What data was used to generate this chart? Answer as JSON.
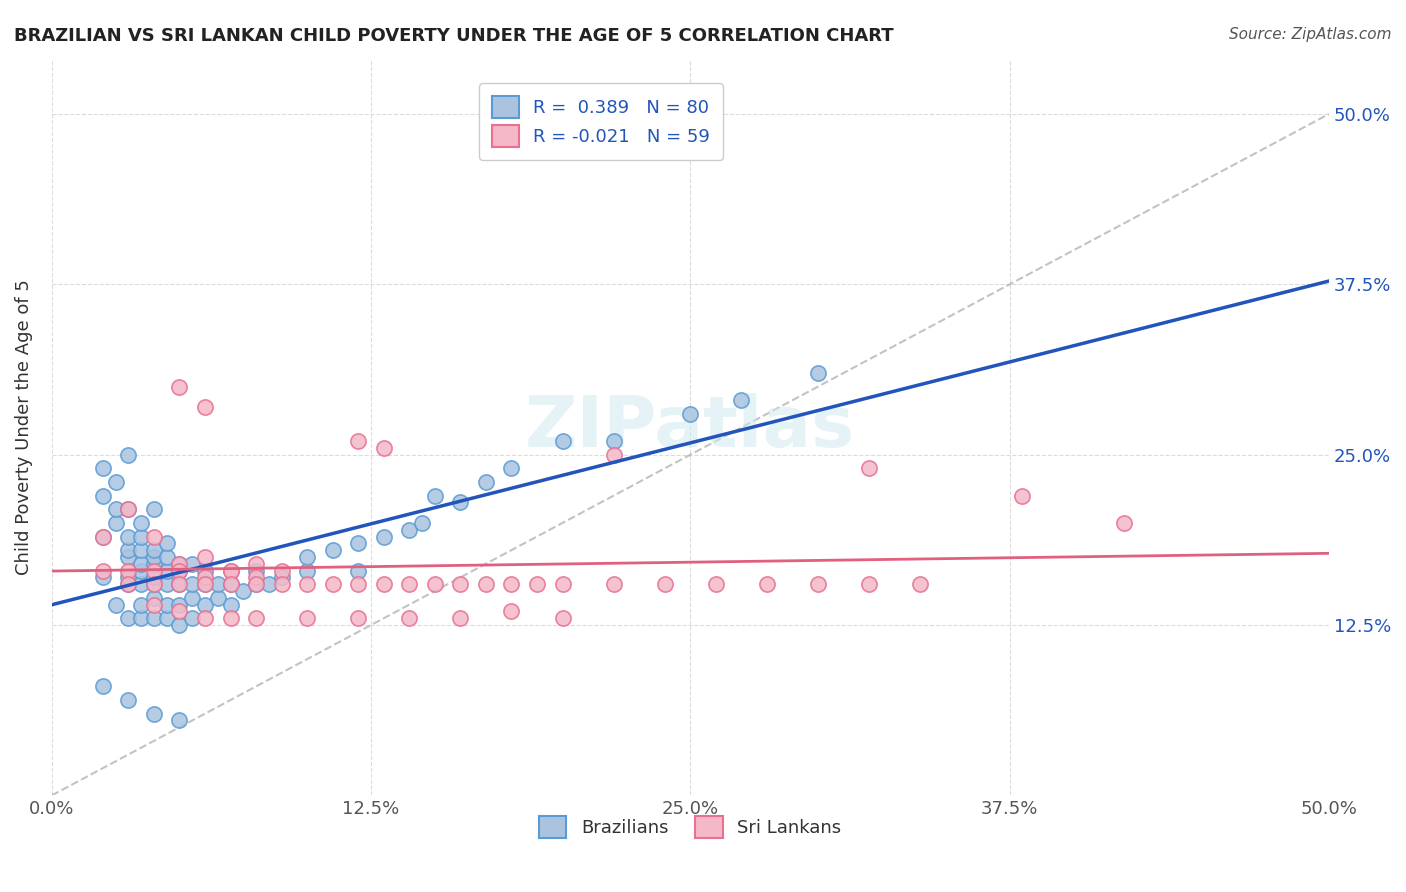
{
  "title": "BRAZILIAN VS SRI LANKAN CHILD POVERTY UNDER THE AGE OF 5 CORRELATION CHART",
  "source_text": "Source: ZipAtlas.com",
  "ylabel": "Child Poverty Under the Age of 5",
  "xlabel": "",
  "xlim": [
    0.0,
    0.5
  ],
  "ylim": [
    0.0,
    0.5
  ],
  "xtick_labels": [
    "0.0%",
    "12.5%",
    "25.0%",
    "37.5%",
    "50.0%"
  ],
  "xtick_vals": [
    0.0,
    0.125,
    0.25,
    0.375,
    0.5
  ],
  "ytick_labels": [
    "12.5%",
    "25.0%",
    "37.5%",
    "50.0%"
  ],
  "ytick_vals": [
    0.125,
    0.25,
    0.375,
    0.5
  ],
  "ytick_right_labels": [
    "12.5%",
    "25.0%",
    "37.5%",
    "50.0%"
  ],
  "brazil_color": "#aac4e0",
  "brazil_edge": "#5b9bd5",
  "srilanka_color": "#f4b8c8",
  "srilanka_edge": "#e87090",
  "brazil_line_color": "#2255bb",
  "srilanka_line_color": "#e06080",
  "trend_line_color": "#aaaaaa",
  "watermark": "ZIPatlas",
  "legend_brazil_label": "R =  0.389   N = 80",
  "legend_sri_label": "R = -0.021   N = 59",
  "brazil_R": 0.389,
  "brazil_N": 80,
  "sri_R": -0.021,
  "sri_N": 59,
  "brazil_points": [
    [
      0.02,
      0.19
    ],
    [
      0.02,
      0.22
    ],
    [
      0.02,
      0.24
    ],
    [
      0.02,
      0.16
    ],
    [
      0.025,
      0.14
    ],
    [
      0.025,
      0.2
    ],
    [
      0.025,
      0.21
    ],
    [
      0.025,
      0.23
    ],
    [
      0.03,
      0.13
    ],
    [
      0.03,
      0.155
    ],
    [
      0.03,
      0.16
    ],
    [
      0.03,
      0.175
    ],
    [
      0.03,
      0.18
    ],
    [
      0.03,
      0.19
    ],
    [
      0.03,
      0.21
    ],
    [
      0.03,
      0.25
    ],
    [
      0.035,
      0.13
    ],
    [
      0.035,
      0.14
    ],
    [
      0.035,
      0.155
    ],
    [
      0.035,
      0.165
    ],
    [
      0.035,
      0.17
    ],
    [
      0.035,
      0.18
    ],
    [
      0.035,
      0.19
    ],
    [
      0.035,
      0.2
    ],
    [
      0.04,
      0.13
    ],
    [
      0.04,
      0.145
    ],
    [
      0.04,
      0.155
    ],
    [
      0.04,
      0.16
    ],
    [
      0.04,
      0.17
    ],
    [
      0.04,
      0.175
    ],
    [
      0.04,
      0.18
    ],
    [
      0.04,
      0.21
    ],
    [
      0.045,
      0.13
    ],
    [
      0.045,
      0.14
    ],
    [
      0.045,
      0.155
    ],
    [
      0.045,
      0.165
    ],
    [
      0.045,
      0.175
    ],
    [
      0.045,
      0.185
    ],
    [
      0.05,
      0.125
    ],
    [
      0.05,
      0.14
    ],
    [
      0.05,
      0.155
    ],
    [
      0.05,
      0.165
    ],
    [
      0.05,
      0.17
    ],
    [
      0.055,
      0.13
    ],
    [
      0.055,
      0.145
    ],
    [
      0.055,
      0.155
    ],
    [
      0.055,
      0.17
    ],
    [
      0.06,
      0.14
    ],
    [
      0.06,
      0.155
    ],
    [
      0.06,
      0.165
    ],
    [
      0.065,
      0.145
    ],
    [
      0.065,
      0.155
    ],
    [
      0.07,
      0.14
    ],
    [
      0.07,
      0.155
    ],
    [
      0.075,
      0.15
    ],
    [
      0.08,
      0.155
    ],
    [
      0.08,
      0.165
    ],
    [
      0.085,
      0.155
    ],
    [
      0.09,
      0.16
    ],
    [
      0.1,
      0.165
    ],
    [
      0.1,
      0.175
    ],
    [
      0.11,
      0.18
    ],
    [
      0.12,
      0.165
    ],
    [
      0.12,
      0.185
    ],
    [
      0.13,
      0.19
    ],
    [
      0.14,
      0.195
    ],
    [
      0.145,
      0.2
    ],
    [
      0.15,
      0.22
    ],
    [
      0.16,
      0.215
    ],
    [
      0.17,
      0.23
    ],
    [
      0.18,
      0.24
    ],
    [
      0.2,
      0.26
    ],
    [
      0.22,
      0.26
    ],
    [
      0.25,
      0.28
    ],
    [
      0.27,
      0.29
    ],
    [
      0.3,
      0.31
    ],
    [
      0.02,
      0.08
    ],
    [
      0.03,
      0.07
    ],
    [
      0.04,
      0.06
    ],
    [
      0.05,
      0.055
    ]
  ],
  "srilanka_points": [
    [
      0.02,
      0.19
    ],
    [
      0.03,
      0.21
    ],
    [
      0.04,
      0.19
    ],
    [
      0.05,
      0.17
    ],
    [
      0.06,
      0.175
    ],
    [
      0.07,
      0.165
    ],
    [
      0.08,
      0.17
    ],
    [
      0.09,
      0.165
    ],
    [
      0.02,
      0.165
    ],
    [
      0.03,
      0.165
    ],
    [
      0.04,
      0.165
    ],
    [
      0.05,
      0.165
    ],
    [
      0.06,
      0.16
    ],
    [
      0.07,
      0.165
    ],
    [
      0.08,
      0.16
    ],
    [
      0.03,
      0.155
    ],
    [
      0.04,
      0.155
    ],
    [
      0.05,
      0.155
    ],
    [
      0.06,
      0.155
    ],
    [
      0.07,
      0.155
    ],
    [
      0.08,
      0.155
    ],
    [
      0.09,
      0.155
    ],
    [
      0.1,
      0.155
    ],
    [
      0.11,
      0.155
    ],
    [
      0.12,
      0.155
    ],
    [
      0.13,
      0.155
    ],
    [
      0.14,
      0.155
    ],
    [
      0.15,
      0.155
    ],
    [
      0.16,
      0.155
    ],
    [
      0.17,
      0.155
    ],
    [
      0.18,
      0.155
    ],
    [
      0.19,
      0.155
    ],
    [
      0.2,
      0.155
    ],
    [
      0.22,
      0.155
    ],
    [
      0.24,
      0.155
    ],
    [
      0.26,
      0.155
    ],
    [
      0.28,
      0.155
    ],
    [
      0.3,
      0.155
    ],
    [
      0.32,
      0.155
    ],
    [
      0.34,
      0.155
    ],
    [
      0.04,
      0.14
    ],
    [
      0.05,
      0.135
    ],
    [
      0.06,
      0.13
    ],
    [
      0.07,
      0.13
    ],
    [
      0.08,
      0.13
    ],
    [
      0.1,
      0.13
    ],
    [
      0.12,
      0.13
    ],
    [
      0.14,
      0.13
    ],
    [
      0.16,
      0.13
    ],
    [
      0.18,
      0.135
    ],
    [
      0.2,
      0.13
    ],
    [
      0.05,
      0.3
    ],
    [
      0.06,
      0.285
    ],
    [
      0.12,
      0.26
    ],
    [
      0.13,
      0.255
    ],
    [
      0.22,
      0.25
    ],
    [
      0.32,
      0.24
    ],
    [
      0.38,
      0.22
    ],
    [
      0.42,
      0.2
    ]
  ]
}
